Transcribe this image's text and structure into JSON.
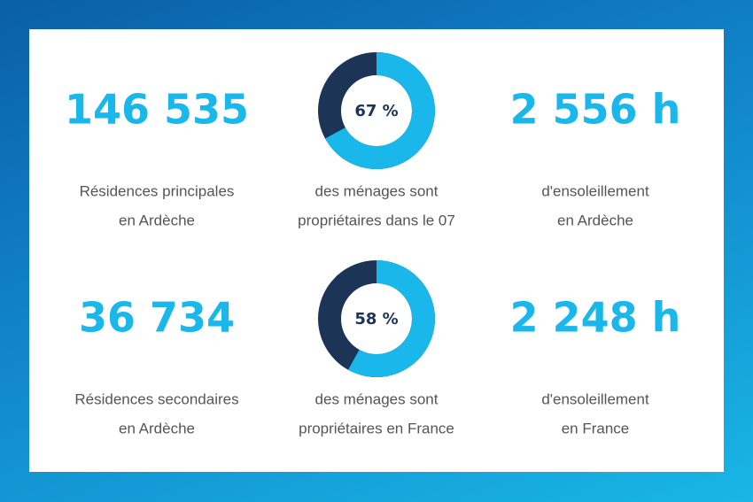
{
  "rows": [
    {
      "left": {
        "number": "146 535",
        "caption": [
          "Résidences principales",
          "en Ardèche"
        ]
      },
      "donut": {
        "value": 67,
        "label": "67 %",
        "caption": [
          "des ménages sont",
          "propriétaires dans le 07"
        ]
      },
      "right": {
        "number": "2 556 h",
        "caption": [
          "d'ensoleillement",
          "en Ardèche"
        ]
      }
    },
    {
      "left": {
        "number": "36 734",
        "caption": [
          "Résidences secondaires",
          "en Ardèche"
        ]
      },
      "donut": {
        "value": 58,
        "label": "58 %",
        "caption": [
          "des ménages sont",
          "propriétaires en France"
        ]
      },
      "right": {
        "number": "2 248 h",
        "caption": [
          "d'ensoleillement",
          "en France"
        ]
      }
    }
  ]
}
